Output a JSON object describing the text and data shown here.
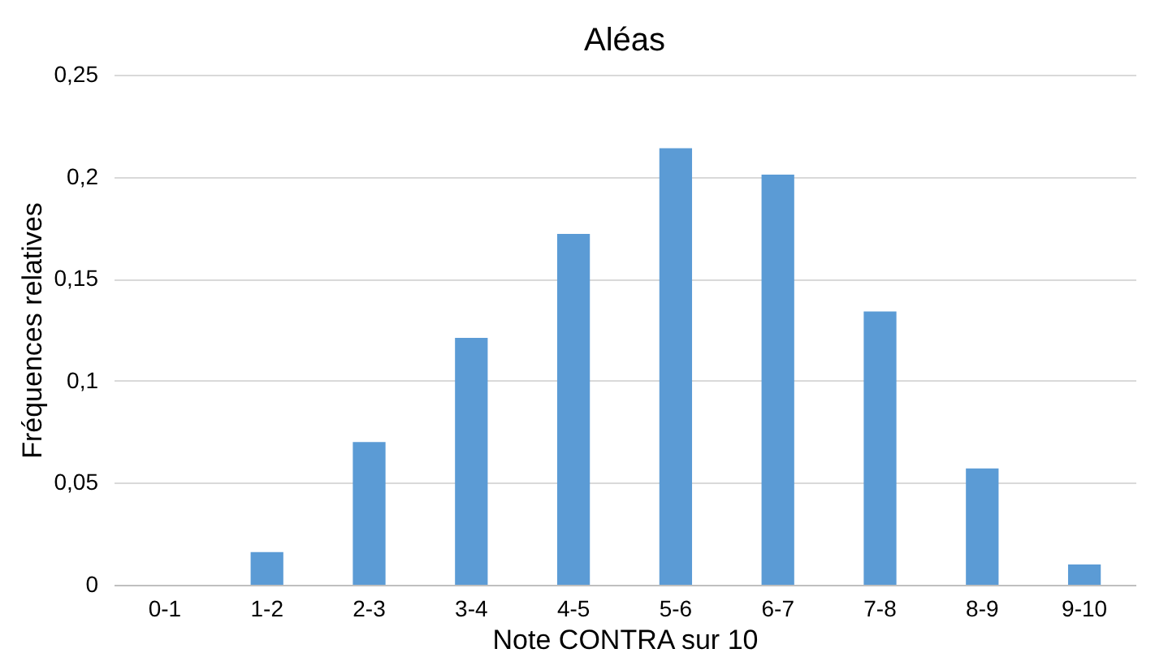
{
  "chart_data": {
    "type": "bar",
    "title": "Aléas",
    "xlabel": "Note CONTRA sur 10",
    "ylabel": "Fréquences relatives",
    "categories": [
      "0-1",
      "1-2",
      "2-3",
      "3-4",
      "4-5",
      "5-6",
      "6-7",
      "7-8",
      "8-9",
      "9-10"
    ],
    "values": [
      0,
      0.016,
      0.07,
      0.121,
      0.172,
      0.214,
      0.201,
      0.134,
      0.057,
      0.01
    ],
    "color": "#5b9bd5",
    "ylim": [
      0,
      0.25
    ],
    "yticks": [
      {
        "value": 0,
        "label": "0"
      },
      {
        "value": 0.05,
        "label": "0,05"
      },
      {
        "value": 0.1,
        "label": "0,1"
      },
      {
        "value": 0.15,
        "label": "0,15"
      },
      {
        "value": 0.2,
        "label": "0,2"
      },
      {
        "value": 0.25,
        "label": "0,25"
      }
    ],
    "grid": "y"
  }
}
